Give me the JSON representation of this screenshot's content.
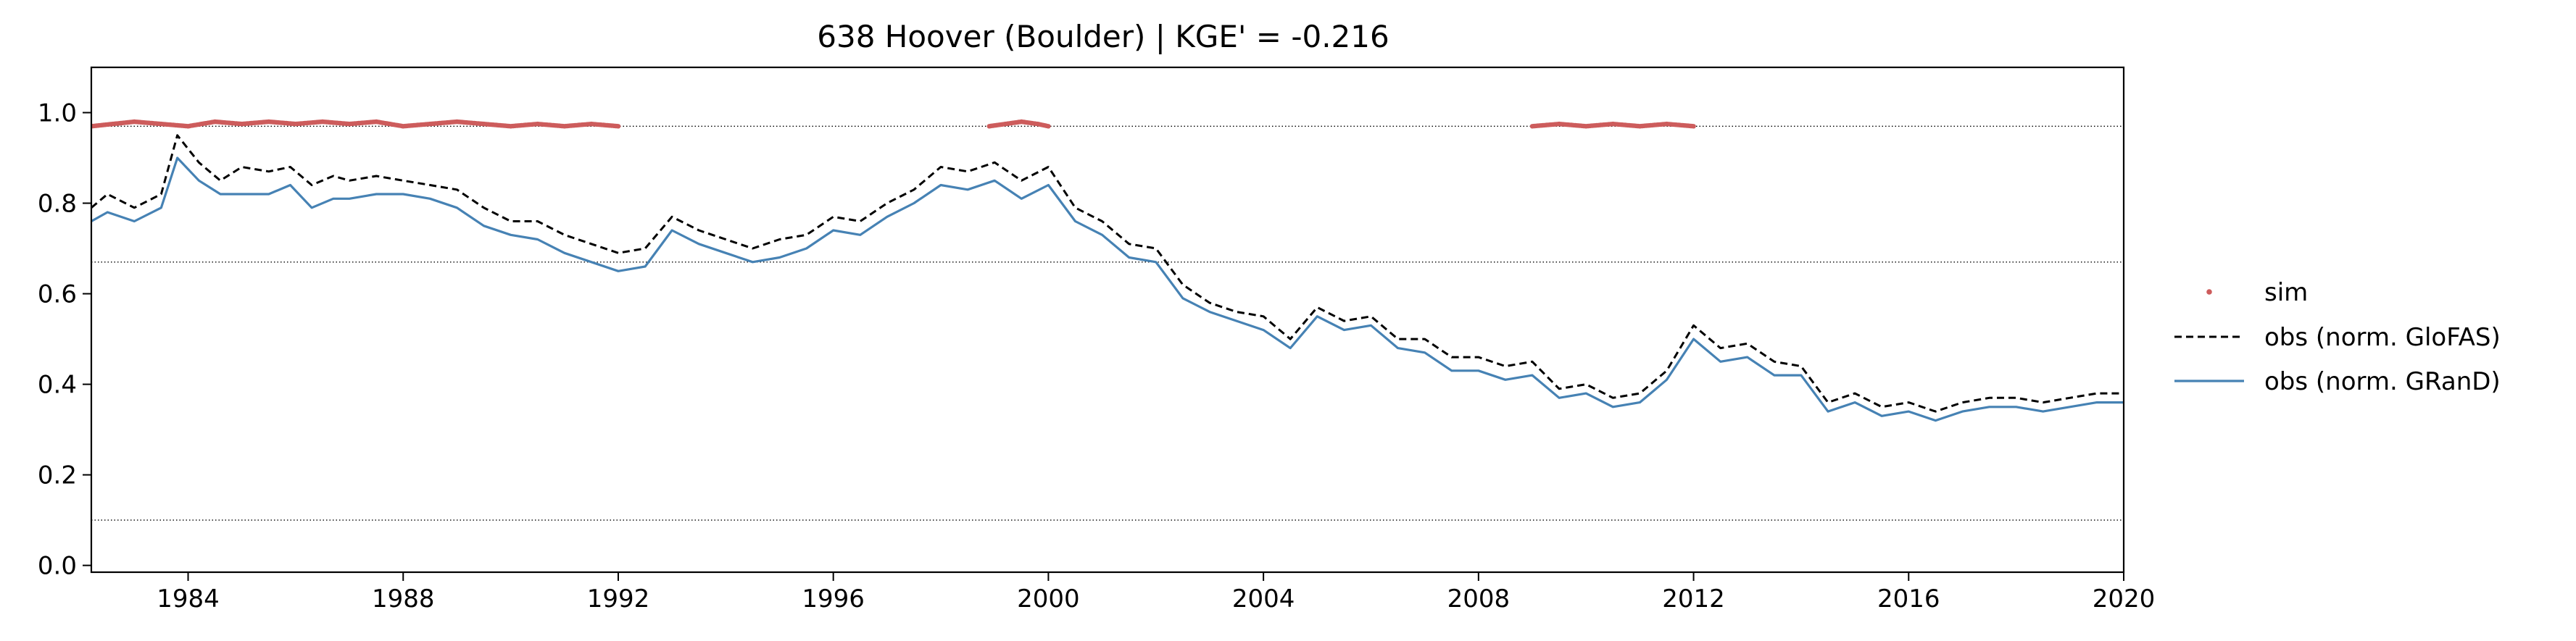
{
  "chart_data": {
    "type": "line",
    "title": "638  Hoover (Boulder) | KGE' = -0.216",
    "xlabel": "",
    "ylabel": "",
    "xlim": [
      1982.2,
      2020.0
    ],
    "ylim": [
      -0.015,
      1.1
    ],
    "x_ticks": [
      1984,
      1988,
      1992,
      1996,
      2000,
      2004,
      2008,
      2012,
      2016,
      2020
    ],
    "x_tick_labels": [
      "1984",
      "1988",
      "1992",
      "1996",
      "2000",
      "2004",
      "2008",
      "2012",
      "2016",
      "2020"
    ],
    "y_ticks": [
      0.0,
      0.2,
      0.4,
      0.6,
      0.8,
      1.0
    ],
    "y_tick_labels": [
      "0.0",
      "0.2",
      "0.4",
      "0.6",
      "0.8",
      "1.0"
    ],
    "grid": false,
    "legend_position": "right, outside plot area",
    "reference_lines": [
      0.97,
      0.67,
      0.1
    ],
    "series": [
      {
        "name": "sim",
        "style": "dots",
        "color": "#cd5c5c",
        "segments": [
          {
            "x": [
              1982.2,
              1982.6,
              1983.0,
              1983.5,
              1984.0,
              1984.5,
              1985.0,
              1985.5,
              1986.0,
              1986.5,
              1987.0,
              1987.5,
              1988.0,
              1988.5,
              1989.0,
              1989.5,
              1990.0,
              1990.5,
              1991.0,
              1991.5,
              1992.0
            ],
            "y": [
              0.97,
              0.975,
              0.98,
              0.975,
              0.97,
              0.98,
              0.975,
              0.98,
              0.975,
              0.98,
              0.975,
              0.98,
              0.97,
              0.975,
              0.98,
              0.975,
              0.97,
              0.975,
              0.97,
              0.975,
              0.97
            ]
          },
          {
            "x": [
              1998.9,
              1999.2,
              1999.5,
              1999.8,
              2000.0
            ],
            "y": [
              0.97,
              0.975,
              0.98,
              0.975,
              0.97
            ]
          },
          {
            "x": [
              2009.0,
              2009.5,
              2010.0,
              2010.5,
              2011.0,
              2011.5,
              2012.0
            ],
            "y": [
              0.97,
              0.975,
              0.97,
              0.975,
              0.97,
              0.975,
              0.97
            ]
          }
        ]
      },
      {
        "name": "obs (norm. GloFAS)",
        "style": "dashed",
        "color": "#000000",
        "x": [
          1982.2,
          1982.5,
          1983.0,
          1983.5,
          1983.8,
          1984.2,
          1984.6,
          1985.0,
          1985.5,
          1985.9,
          1986.3,
          1986.7,
          1987.0,
          1987.5,
          1988.0,
          1988.5,
          1989.0,
          1989.5,
          1990.0,
          1990.5,
          1991.0,
          1991.5,
          1992.0,
          1992.5,
          1993.0,
          1993.5,
          1994.0,
          1994.5,
          1995.0,
          1995.5,
          1996.0,
          1996.5,
          1997.0,
          1997.5,
          1998.0,
          1998.5,
          1999.0,
          1999.5,
          2000.0,
          2000.5,
          2001.0,
          2001.5,
          2002.0,
          2002.5,
          2003.0,
          2003.5,
          2004.0,
          2004.5,
          2005.0,
          2005.5,
          2006.0,
          2006.5,
          2007.0,
          2007.5,
          2008.0,
          2008.5,
          2009.0,
          2009.5,
          2010.0,
          2010.5,
          2011.0,
          2011.5,
          2012.0,
          2012.5,
          2013.0,
          2013.5,
          2014.0,
          2014.5,
          2015.0,
          2015.5,
          2016.0,
          2016.5,
          2017.0,
          2017.5,
          2018.0,
          2018.5,
          2019.0,
          2019.5,
          2020.0
        ],
        "y": [
          0.79,
          0.82,
          0.79,
          0.82,
          0.95,
          0.89,
          0.85,
          0.88,
          0.87,
          0.88,
          0.84,
          0.86,
          0.85,
          0.86,
          0.85,
          0.84,
          0.83,
          0.79,
          0.76,
          0.76,
          0.73,
          0.71,
          0.69,
          0.7,
          0.77,
          0.74,
          0.72,
          0.7,
          0.72,
          0.73,
          0.77,
          0.76,
          0.8,
          0.83,
          0.88,
          0.87,
          0.89,
          0.85,
          0.88,
          0.79,
          0.76,
          0.71,
          0.7,
          0.62,
          0.58,
          0.56,
          0.55,
          0.5,
          0.57,
          0.54,
          0.55,
          0.5,
          0.5,
          0.46,
          0.46,
          0.44,
          0.45,
          0.39,
          0.4,
          0.37,
          0.38,
          0.43,
          0.53,
          0.48,
          0.49,
          0.45,
          0.44,
          0.36,
          0.38,
          0.35,
          0.36,
          0.34,
          0.36,
          0.37,
          0.37,
          0.36,
          0.37,
          0.38,
          0.38
        ]
      },
      {
        "name": "obs (norm. GRanD)",
        "style": "solid",
        "color": "#4682b4",
        "x": [
          1982.2,
          1982.5,
          1983.0,
          1983.5,
          1983.8,
          1984.2,
          1984.6,
          1985.0,
          1985.5,
          1985.9,
          1986.3,
          1986.7,
          1987.0,
          1987.5,
          1988.0,
          1988.5,
          1989.0,
          1989.5,
          1990.0,
          1990.5,
          1991.0,
          1991.5,
          1992.0,
          1992.5,
          1993.0,
          1993.5,
          1994.0,
          1994.5,
          1995.0,
          1995.5,
          1996.0,
          1996.5,
          1997.0,
          1997.5,
          1998.0,
          1998.5,
          1999.0,
          1999.5,
          2000.0,
          2000.5,
          2001.0,
          2001.5,
          2002.0,
          2002.5,
          2003.0,
          2003.5,
          2004.0,
          2004.5,
          2005.0,
          2005.5,
          2006.0,
          2006.5,
          2007.0,
          2007.5,
          2008.0,
          2008.5,
          2009.0,
          2009.5,
          2010.0,
          2010.5,
          2011.0,
          2011.5,
          2012.0,
          2012.5,
          2013.0,
          2013.5,
          2014.0,
          2014.5,
          2015.0,
          2015.5,
          2016.0,
          2016.5,
          2017.0,
          2017.5,
          2018.0,
          2018.5,
          2019.0,
          2019.5,
          2020.0
        ],
        "y": [
          0.76,
          0.78,
          0.76,
          0.79,
          0.9,
          0.85,
          0.82,
          0.82,
          0.82,
          0.84,
          0.79,
          0.81,
          0.81,
          0.82,
          0.82,
          0.81,
          0.79,
          0.75,
          0.73,
          0.72,
          0.69,
          0.67,
          0.65,
          0.66,
          0.74,
          0.71,
          0.69,
          0.67,
          0.68,
          0.7,
          0.74,
          0.73,
          0.77,
          0.8,
          0.84,
          0.83,
          0.85,
          0.81,
          0.84,
          0.76,
          0.73,
          0.68,
          0.67,
          0.59,
          0.56,
          0.54,
          0.52,
          0.48,
          0.55,
          0.52,
          0.53,
          0.48,
          0.47,
          0.43,
          0.43,
          0.41,
          0.42,
          0.37,
          0.38,
          0.35,
          0.36,
          0.41,
          0.5,
          0.45,
          0.46,
          0.42,
          0.42,
          0.34,
          0.36,
          0.33,
          0.34,
          0.32,
          0.34,
          0.35,
          0.35,
          0.34,
          0.35,
          0.36,
          0.36
        ]
      }
    ]
  }
}
